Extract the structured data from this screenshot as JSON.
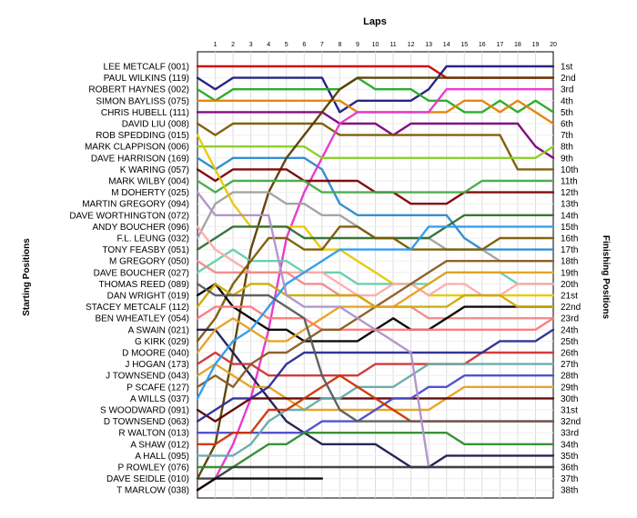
{
  "chart_data": {
    "type": "line",
    "title": "Laps",
    "ylabel_left": "Starting Positions",
    "ylabel_right": "Finishing Positions",
    "x": [
      0,
      1,
      2,
      3,
      4,
      5,
      6,
      7,
      8,
      9,
      10,
      11,
      12,
      13,
      14,
      15,
      16,
      17,
      18,
      19,
      20
    ],
    "x_ticks": [
      "1",
      "2",
      "3",
      "4",
      "5",
      "6",
      "7",
      "8",
      "9",
      "10",
      "11",
      "12",
      "13",
      "14",
      "15",
      "16",
      "17",
      "18",
      "19",
      "20"
    ],
    "grid": true,
    "drivers": [
      "LEE METCALF (001)",
      "PAUL WILKINS (119)",
      "ROBERT HAYNES (002)",
      "SIMON BAYLISS (075)",
      "CHRIS HUBELL (111)",
      "DAVID LIU (008)",
      "ROB SPEDDING (015)",
      "MARK CLAPPISON (006)",
      "DAVE HARRISON (169)",
      "K WARING (057)",
      "MARK WILBY (004)",
      "M DOHERTY (025)",
      "MARTIN GREGORY (094)",
      "DAVE WORTHINGTON (072)",
      "ANDY BOUCHER (096)",
      "F.L. LEUNG (032)",
      "TONY FEASBY (051)",
      "M GREGORY (050)",
      "DAVE BOUCHER (027)",
      "THOMAS REED (089)",
      "DAN WRIGHT (019)",
      "STACEY METCALF (112)",
      "BEN WHEATLEY (054)",
      "A SWAIN (021)",
      "G KIRK (029)",
      "D MOORE (040)",
      "J HOGAN (173)",
      "J TOWNSEND (043)",
      "P SCAFE (127)",
      "A WILLS (037)",
      "S WOODWARD (091)",
      "D TOWNSEND (063)",
      "R WALTON (013)",
      "A SHAW (012)",
      "A HALL (095)",
      "P ROWLEY (076)",
      "DAVE SEIDLE (010)",
      "T MARLOW (038)"
    ],
    "finishing_positions": [
      "1st",
      "2nd",
      "3rd",
      "4th",
      "5th",
      "6th",
      "7th",
      "8th",
      "9th",
      "10th",
      "11th",
      "12th",
      "13th",
      "14th",
      "15th",
      "16th",
      "17th",
      "18th",
      "19th",
      "20th",
      "21st",
      "22nd",
      "23rd",
      "24th",
      "25th",
      "26th",
      "27th",
      "28th",
      "29th",
      "30th",
      "31st",
      "32nd",
      "33rd",
      "34th",
      "35th",
      "36th",
      "37th",
      "38th"
    ],
    "series": [
      {
        "color": "#cc0000",
        "positions": [
          1,
          1,
          1,
          1,
          1,
          1,
          1,
          1,
          1,
          1,
          1,
          1,
          1,
          1,
          2,
          2,
          2,
          2,
          2,
          2,
          2
        ]
      },
      {
        "color": "#1a1a80",
        "positions": [
          2,
          3,
          2,
          2,
          2,
          2,
          2,
          2,
          5,
          4,
          4,
          4,
          4,
          3,
          1,
          1,
          1,
          1,
          1,
          1,
          1
        ]
      },
      {
        "color": "#22aa22",
        "positions": [
          3,
          4,
          3,
          3,
          3,
          3,
          3,
          3,
          3,
          2,
          3,
          3,
          3,
          4,
          4,
          5,
          5,
          4,
          5,
          4,
          5
        ]
      },
      {
        "color": "#e68000",
        "positions": [
          4,
          4,
          4,
          4,
          4,
          4,
          4,
          4,
          4,
          5,
          5,
          5,
          5,
          5,
          5,
          4,
          4,
          5,
          4,
          5,
          6
        ]
      },
      {
        "color": "#7a007a",
        "positions": [
          5,
          5,
          5,
          5,
          5,
          5,
          5,
          5,
          6,
          6,
          6,
          7,
          6,
          6,
          6,
          6,
          6,
          6,
          6,
          8,
          9
        ]
      },
      {
        "color": "#7a5a00",
        "positions": [
          6,
          7,
          6,
          6,
          6,
          6,
          6,
          6,
          7,
          7,
          7,
          7,
          7,
          7,
          7,
          7,
          7,
          7,
          10,
          10,
          10
        ]
      },
      {
        "color": "#2a8acc",
        "positions": [
          9,
          10,
          9,
          9,
          9,
          9,
          9,
          10,
          13,
          14,
          14,
          14,
          14,
          14,
          14,
          16,
          17,
          17,
          17,
          17,
          17
        ]
      },
      {
        "color": "#e633cc",
        "positions": [
          38,
          37,
          34,
          30,
          24,
          16,
          12,
          9,
          6,
          5,
          5,
          5,
          5,
          5,
          3,
          3,
          3,
          3,
          3,
          3,
          3
        ]
      },
      {
        "color": "#88cc22",
        "positions": [
          8,
          8,
          8,
          8,
          8,
          8,
          8,
          9,
          9,
          9,
          9,
          9,
          9,
          9,
          9,
          9,
          9,
          9,
          9,
          9,
          8
        ]
      },
      {
        "color": "#5a3a00",
        "positions": [
          37,
          34,
          26,
          17,
          12,
          9,
          7,
          5,
          3,
          2,
          2,
          2,
          2,
          2,
          2,
          2,
          2,
          2,
          2,
          2,
          2
        ]
      },
      {
        "color": "#7a0000",
        "positions": [
          10,
          11,
          10,
          10,
          10,
          10,
          11,
          11,
          11,
          11,
          12,
          12,
          13,
          13,
          13,
          12,
          12,
          12,
          12,
          12,
          12
        ]
      },
      {
        "color": "#44aa44",
        "positions": [
          11,
          12,
          11,
          11,
          11,
          11,
          11,
          12,
          12,
          12,
          12,
          12,
          12,
          12,
          12,
          12,
          11,
          11,
          11,
          11,
          11
        ]
      },
      {
        "color": "#a0a0a0",
        "positions": [
          16,
          13,
          12,
          12,
          12,
          13,
          13,
          14,
          14,
          15,
          16,
          16,
          16,
          16,
          17,
          17,
          17,
          18,
          18,
          18,
          18
        ]
      },
      {
        "color": "#e6c800",
        "positions": [
          7,
          10,
          13,
          15,
          15,
          15,
          15,
          17,
          17,
          18,
          19,
          20,
          20,
          21,
          21,
          21,
          21,
          21,
          21,
          21,
          21
        ]
      },
      {
        "color": "#66ccaa",
        "positions": [
          19,
          18,
          17,
          18,
          18,
          18,
          19,
          19,
          19,
          20,
          20,
          20,
          20,
          20,
          19,
          19,
          19,
          19,
          20,
          20,
          20
        ]
      },
      {
        "color": "#2e6e2e",
        "positions": [
          17,
          16,
          15,
          15,
          15,
          15,
          16,
          16,
          16,
          16,
          16,
          16,
          16,
          16,
          15,
          14,
          14,
          14,
          14,
          14,
          14
        ]
      },
      {
        "color": "#ffaaaa",
        "positions": [
          15,
          17,
          18,
          19,
          19,
          19,
          19,
          19,
          20,
          21,
          21,
          20,
          20,
          21,
          20,
          20,
          21,
          21,
          20,
          20,
          20
        ]
      },
      {
        "color": "#f08888",
        "positions": [
          18,
          19,
          19,
          19,
          19,
          19,
          20,
          20,
          21,
          21,
          22,
          22,
          22,
          23,
          23,
          23,
          23,
          23,
          23,
          23,
          23
        ]
      },
      {
        "color": "#7a5a00",
        "positions": [
          25,
          23,
          20,
          18,
          16,
          16,
          17,
          17,
          15,
          15,
          16,
          16,
          17,
          17,
          17,
          17,
          17,
          16,
          16,
          16,
          16
        ]
      },
      {
        "color": "#000000",
        "positions": [
          21,
          20,
          22,
          23,
          24,
          24,
          25,
          25,
          25,
          25,
          24,
          23,
          24,
          24,
          23,
          22,
          22,
          22,
          22,
          22,
          22
        ]
      },
      {
        "color": "#ccaa00",
        "positions": [
          22,
          20,
          21,
          20,
          20,
          21,
          21,
          21,
          21,
          21,
          22,
          22,
          22,
          22,
          22,
          21,
          21,
          21,
          22,
          22,
          22
        ]
      },
      {
        "color": "#ff7777",
        "positions": [
          23,
          22,
          22,
          22,
          23,
          23,
          23,
          24,
          24,
          24,
          24,
          24,
          24,
          24,
          24,
          24,
          24,
          24,
          24,
          24,
          23
        ]
      },
      {
        "color": "#1a1a50",
        "positions": [
          24,
          24,
          26,
          28,
          30,
          32,
          33,
          34,
          34,
          34,
          34,
          35,
          36,
          36,
          35,
          35,
          35,
          35,
          35,
          35,
          35
        ]
      },
      {
        "color": "#cc3333",
        "positions": [
          27,
          26,
          27,
          27,
          28,
          28,
          28,
          28,
          28,
          28,
          27,
          27,
          27,
          27,
          27,
          27,
          26,
          26,
          26,
          26,
          26
        ]
      },
      {
        "color": "#e6a020",
        "positions": [
          28,
          27,
          28,
          29,
          29,
          30,
          31,
          31,
          31,
          31,
          31,
          31,
          31,
          31,
          30,
          29,
          29,
          29,
          29,
          29,
          29
        ]
      },
      {
        "color": "#8a5a20",
        "positions": [
          29,
          28,
          29,
          27,
          26,
          26,
          25,
          24,
          24,
          23,
          22,
          21,
          20,
          19,
          18,
          18,
          18,
          18,
          18,
          18,
          18
        ]
      },
      {
        "color": "#2a9aee",
        "positions": [
          30,
          27,
          25,
          24,
          22,
          20,
          19,
          18,
          17,
          17,
          17,
          17,
          17,
          15,
          15,
          15,
          15,
          15,
          15,
          15,
          15
        ]
      },
      {
        "color": "#5a0000",
        "positions": [
          31,
          32,
          31,
          30,
          30,
          30,
          30,
          30,
          30,
          30,
          30,
          30,
          30,
          30,
          30,
          30,
          30,
          30,
          30,
          30,
          30
        ]
      },
      {
        "color": "#2a2a90",
        "positions": [
          32,
          31,
          30,
          30,
          29,
          27,
          26,
          26,
          26,
          26,
          26,
          26,
          26,
          26,
          26,
          26,
          26,
          25,
          25,
          25,
          24
        ]
      },
      {
        "color": "#e6a020",
        "positions": [
          26,
          24,
          23,
          24,
          25,
          25,
          24,
          23,
          22,
          22,
          22,
          22,
          21,
          20,
          19,
          19,
          19,
          19,
          19,
          19,
          19
        ]
      },
      {
        "color": "#4a4acc",
        "positions": [
          33,
          33,
          33,
          33,
          33,
          33,
          33,
          32,
          32,
          32,
          31,
          30,
          30,
          29,
          29,
          28,
          28,
          28,
          28,
          28,
          28
        ]
      },
      {
        "color": "#66aaaa",
        "positions": [
          35,
          35,
          35,
          34,
          32,
          31,
          31,
          30,
          30,
          29,
          29,
          29,
          28,
          27,
          27,
          27,
          27,
          27,
          27,
          27,
          27
        ]
      },
      {
        "color": "#cc3300",
        "positions": [
          34,
          34,
          33,
          33,
          31,
          31,
          30,
          29,
          28,
          29,
          30,
          31,
          32,
          32,
          32,
          32,
          32,
          32,
          32,
          32,
          32
        ]
      },
      {
        "color": "#2e8a2e",
        "positions": [
          36,
          36,
          36,
          35,
          34,
          34,
          33,
          33,
          33,
          33,
          33,
          33,
          33,
          33,
          33,
          34,
          34,
          34,
          34,
          34,
          34
        ]
      },
      {
        "color": "#5a5a5a",
        "positions": [
          20,
          21,
          21,
          21,
          21,
          22,
          23,
          28,
          31,
          32,
          32,
          32,
          32,
          32,
          32,
          32,
          32,
          32,
          32,
          32,
          32
        ]
      },
      {
        "color": "#b090cc",
        "positions": [
          12,
          14,
          14,
          14,
          14,
          21,
          22,
          22,
          22,
          23,
          24,
          25,
          26,
          36,
          36,
          36,
          36,
          36,
          36,
          36,
          36
        ]
      },
      {
        "color": "#3a3a3a",
        "positions": [
          37,
          37,
          36,
          36,
          36,
          36,
          36,
          36,
          36,
          36,
          36,
          36,
          36,
          36,
          36,
          36,
          36,
          36,
          36,
          36,
          36
        ]
      },
      {
        "color": "#000000",
        "positions": [
          38,
          37,
          37,
          37,
          37,
          37,
          37,
          37
        ]
      }
    ]
  }
}
